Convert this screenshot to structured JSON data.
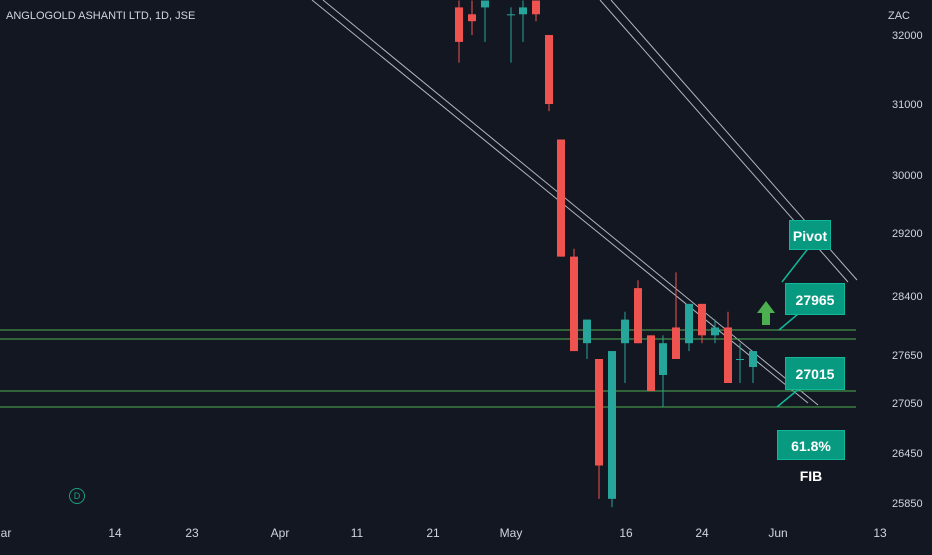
{
  "header": {
    "title": "ANGLOGOLD ASHANTI LTD, 1D, JSE",
    "currency": "ZAC"
  },
  "annotations": {
    "pivot_label": "Pivot",
    "level_1": "27965",
    "level_2": "27015",
    "fib_label": "61.8% FIB",
    "d_badge": "D"
  },
  "colors": {
    "background": "#131722",
    "bull": "#26a69a",
    "bear": "#ef5350",
    "horizontal_lines": "#4caf50",
    "trendlines": "#b2b5be",
    "callout": "#089981",
    "arrow": "#4caf50"
  },
  "chart_data": {
    "type": "candlestick",
    "title": "ANGLOGOLD ASHANTI LTD, 1D, JSE",
    "ylabel": "ZAC",
    "y_ticks": [
      32000,
      31000,
      30000,
      29200,
      28400,
      27650,
      27050,
      26450,
      25850
    ],
    "x_ticks": [
      "ar",
      "14",
      "23",
      "Apr",
      "11",
      "21",
      "May",
      "16",
      "24",
      "Jun",
      "13"
    ],
    "horizontal_levels": [
      27965,
      27850,
      27210,
      26990
    ],
    "candles": [
      {
        "o": 32400,
        "h": 32500,
        "l": 31600,
        "c": 31900
      },
      {
        "o": 32300,
        "h": 32500,
        "l": 32000,
        "c": 32200
      },
      {
        "o": 32400,
        "h": 32500,
        "l": 31900,
        "c": 32500
      },
      {
        "o": 32300,
        "h": 32400,
        "l": 31600,
        "c": 32300
      },
      {
        "o": 32300,
        "h": 32500,
        "l": 31900,
        "c": 32400
      },
      {
        "o": 32500,
        "h": 32500,
        "l": 32200,
        "c": 32300
      },
      {
        "o": 32000,
        "h": 32000,
        "l": 30900,
        "c": 31000
      },
      {
        "o": 30500,
        "h": 30500,
        "l": 28900,
        "c": 28900
      },
      {
        "o": 28900,
        "h": 29000,
        "l": 27700,
        "c": 27700
      },
      {
        "o": 27800,
        "h": 28100,
        "l": 27600,
        "c": 28100
      },
      {
        "o": 27600,
        "h": 27600,
        "l": 25900,
        "c": 26300
      },
      {
        "o": 25900,
        "h": 27700,
        "l": 25800,
        "c": 27700
      },
      {
        "o": 27800,
        "h": 28200,
        "l": 27300,
        "c": 28100
      },
      {
        "o": 28500,
        "h": 28600,
        "l": 27800,
        "c": 27800
      },
      {
        "o": 27900,
        "h": 27900,
        "l": 27200,
        "c": 27200
      },
      {
        "o": 27400,
        "h": 27900,
        "l": 27000,
        "c": 27800
      },
      {
        "o": 28000,
        "h": 28700,
        "l": 27600,
        "c": 27600
      },
      {
        "o": 27800,
        "h": 28300,
        "l": 27700,
        "c": 28300
      },
      {
        "o": 28300,
        "h": 28300,
        "l": 27800,
        "c": 27900
      },
      {
        "o": 27900,
        "h": 28100,
        "l": 27800,
        "c": 28000
      },
      {
        "o": 28000,
        "h": 28200,
        "l": 27300,
        "c": 27300
      },
      {
        "o": 27600,
        "h": 27800,
        "l": 27300,
        "c": 27600
      },
      {
        "o": 27500,
        "h": 27700,
        "l": 27300,
        "c": 27700
      }
    ]
  }
}
